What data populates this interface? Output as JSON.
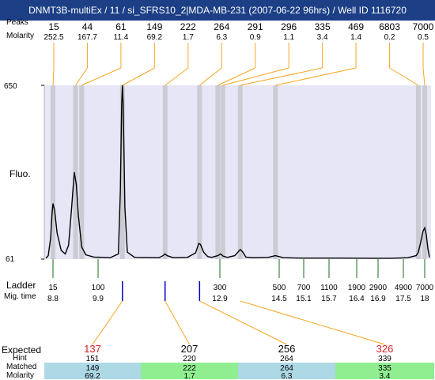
{
  "title": "DNMT3B-multiEx / 11 / si_SFRS10_2|MDA-MB-231 (2007-06-22 96hrs) / Well ID 1116720",
  "labels": {
    "fluo": "Fluo.",
    "ladder": "Ladder",
    "mig_time": "Mig. time",
    "expected": "Expected",
    "hint": "Hint",
    "matched": "Matched",
    "molarity": "Molarity",
    "peaks_top": "Peaks",
    "molarity_top": "Molarity"
  },
  "colors": {
    "title_bg": "#1c3f86",
    "plot_bg": "#e6e6f6",
    "band": "#c6c6cc",
    "trace": "#000000",
    "connector": "#f5a623",
    "ladder_tick": "#1a6e1a",
    "sample_tick": "#0000cc",
    "expected_text": "#d62020",
    "matched_blue": "#add8e6",
    "matched_green": "#90ee90"
  },
  "chart_data": {
    "type": "line",
    "title": "DNMT3B-multiEx / 11 / si_SFRS10_2|MDA-MB-231 (2007-06-22 96hrs) / Well ID 1116720",
    "ylabel": "Fluo.",
    "yticks": [
      "650",
      "61"
    ],
    "ylim": [
      61,
      650
    ],
    "x_axis": "migration time",
    "peaks": [
      {
        "size": "15",
        "molarity": "252.5",
        "mig_time": 8.8
      },
      {
        "size": "44",
        "molarity": "167.7",
        "mig_time": 9.35
      },
      {
        "size": "61",
        "molarity": "11.4",
        "mig_time": 9.5
      },
      {
        "size": "149",
        "molarity": "69.2",
        "mig_time": 10.5
      },
      {
        "size": "222",
        "molarity": "1.7",
        "mig_time": 11.55
      },
      {
        "size": "264",
        "molarity": "6.3",
        "mig_time": 12.4
      },
      {
        "size": "291",
        "molarity": "0.9",
        "mig_time": 12.85
      },
      {
        "size": "296",
        "molarity": "1.1",
        "mig_time": 12.98
      },
      {
        "size": "335",
        "molarity": "3.4",
        "mig_time": 13.45
      },
      {
        "size": "469",
        "molarity": "1.4",
        "mig_time": 14.4
      },
      {
        "size": "6803",
        "molarity": "0.2",
        "mig_time": 17.85
      },
      {
        "size": "7000",
        "molarity": "0.5",
        "mig_time": 18.0
      }
    ],
    "ladder": [
      {
        "size": "15",
        "mig": "8.8"
      },
      {
        "size": "100",
        "mig": "9.9"
      },
      {
        "size": "300",
        "mig": "12.9"
      },
      {
        "size": "500",
        "mig": "14.5"
      },
      {
        "size": "700",
        "mig": "15.1"
      },
      {
        "size": "1100",
        "mig": "15.7"
      },
      {
        "size": "1900",
        "mig": "16.4"
      },
      {
        "size": "2900",
        "mig": "16.9"
      },
      {
        "size": "4900",
        "mig": "17.5"
      },
      {
        "size": "7000",
        "mig": "18"
      }
    ],
    "sample_ticks_mig": [
      10.5,
      11.55,
      12.4
    ],
    "expected_table": [
      {
        "expected": "137",
        "hint": "151",
        "matched": "149",
        "molarity": "69.2"
      },
      {
        "expected": "207",
        "hint": "220",
        "matched": "222",
        "molarity": "1.7"
      },
      {
        "expected": "256",
        "hint": "264",
        "matched": "264",
        "molarity": "6.3"
      },
      {
        "expected": "326",
        "hint": "339",
        "matched": "335",
        "molarity": "3.4"
      }
    ],
    "trace": [
      [
        8.5,
        0.005
      ],
      [
        8.6,
        0.02
      ],
      [
        8.7,
        0.12
      ],
      [
        8.76,
        0.26
      ],
      [
        8.8,
        0.32
      ],
      [
        8.84,
        0.28
      ],
      [
        8.9,
        0.15
      ],
      [
        9.0,
        0.05
      ],
      [
        9.1,
        0.03
      ],
      [
        9.18,
        0.08
      ],
      [
        9.25,
        0.28
      ],
      [
        9.32,
        0.5
      ],
      [
        9.37,
        0.43
      ],
      [
        9.42,
        0.25
      ],
      [
        9.5,
        0.07
      ],
      [
        9.6,
        0.025
      ],
      [
        9.8,
        0.012
      ],
      [
        10.2,
        0.008
      ],
      [
        10.4,
        0.03
      ],
      [
        10.45,
        0.4
      ],
      [
        10.48,
        0.88
      ],
      [
        10.5,
        1.0
      ],
      [
        10.52,
        0.88
      ],
      [
        10.56,
        0.3
      ],
      [
        10.62,
        0.04
      ],
      [
        10.8,
        0.01
      ],
      [
        11.4,
        0.008
      ],
      [
        11.5,
        0.02
      ],
      [
        11.55,
        0.03
      ],
      [
        11.6,
        0.02
      ],
      [
        11.75,
        0.008
      ],
      [
        12.1,
        0.01
      ],
      [
        12.3,
        0.035
      ],
      [
        12.38,
        0.09
      ],
      [
        12.42,
        0.085
      ],
      [
        12.5,
        0.04
      ],
      [
        12.6,
        0.015
      ],
      [
        12.7,
        0.01
      ],
      [
        12.85,
        0.02
      ],
      [
        12.92,
        0.03
      ],
      [
        12.98,
        0.018
      ],
      [
        13.1,
        0.01
      ],
      [
        13.3,
        0.02
      ],
      [
        13.45,
        0.055
      ],
      [
        13.52,
        0.04
      ],
      [
        13.6,
        0.012
      ],
      [
        13.8,
        0.008
      ],
      [
        14.2,
        0.01
      ],
      [
        14.4,
        0.02
      ],
      [
        14.6,
        0.008
      ],
      [
        15.0,
        0.006
      ],
      [
        16.0,
        0.006
      ],
      [
        16.8,
        0.005
      ],
      [
        17.2,
        0.005
      ],
      [
        17.6,
        0.008
      ],
      [
        17.8,
        0.02
      ],
      [
        17.85,
        0.04
      ],
      [
        17.9,
        0.09
      ],
      [
        17.96,
        0.16
      ],
      [
        18.0,
        0.18
      ],
      [
        18.05,
        0.14
      ],
      [
        18.1,
        0.06
      ],
      [
        18.15,
        0.01
      ]
    ]
  }
}
